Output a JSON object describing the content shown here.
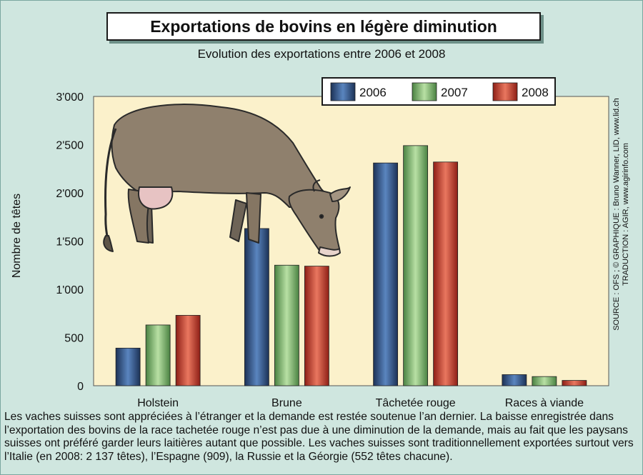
{
  "title": "Exportations de bovins en légère diminution",
  "subtitle": "Evolution des exportations entre 2006 et 2008",
  "credits_line1": "SOURCE : OFS ; © GRAPHIQUE : Bruno Wanner, LID, www.lid.ch",
  "credits_line2": "TRADUCTION : AGIR, www.agirinfo.com",
  "caption": "Les vaches suisses sont appréciées à l’étranger et la demande est restée soutenue l’an dernier. La baisse enregistrée dans l’exportation des bovins de la race tachetée rouge n’est pas due à une diminution de la demande, mais au fait que les paysans suisses ont préféré garder leurs laitières autant que possible. Les vaches suisses sont traditionnellement exportées surtout vers l’Italie (en 2008: 2 137 têtes), l’Espagne (909), la Russie et la Géorgie (552 têtes chacune).",
  "illustration": "cow-illustration",
  "chart_data": {
    "type": "bar",
    "ylabel": "Nombre de têtes",
    "xlabel": "",
    "ylim": [
      0,
      3000
    ],
    "yticks": [
      0,
      500,
      1000,
      1500,
      2000,
      2500,
      3000
    ],
    "ytick_labels": [
      "0",
      "500",
      "1'000",
      "1'500",
      "2'000",
      "2'500",
      "3'000"
    ],
    "categories": [
      "Holstein",
      "Brune",
      "Tâchetée rouge",
      "Races à viande"
    ],
    "series": [
      {
        "name": "2006",
        "values": [
          390,
          1630,
          2310,
          115
        ],
        "color": "#2b4c7e"
      },
      {
        "name": "2007",
        "values": [
          630,
          1250,
          2490,
          95
        ],
        "color": "#6aa35a"
      },
      {
        "name": "2008",
        "values": [
          730,
          1240,
          2320,
          55
        ],
        "color": "#c0392b"
      }
    ],
    "legend_position": "top-right",
    "grid": false
  }
}
